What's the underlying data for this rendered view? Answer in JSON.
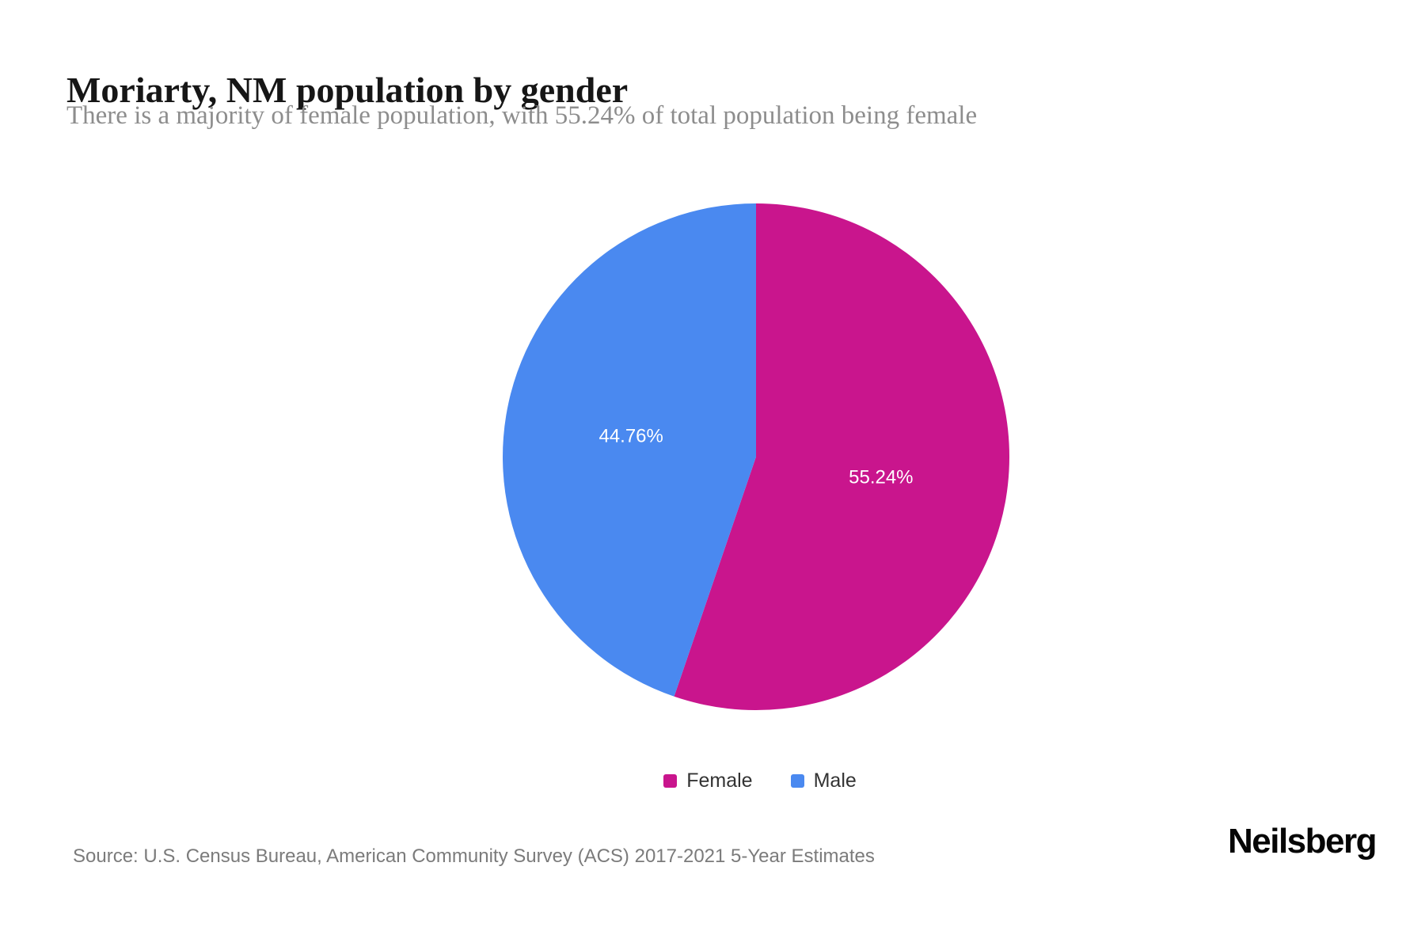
{
  "page": {
    "title": "Moriarty, NM population by gender",
    "subtitle": "There is a majority of female population, with 55.24% of total population being female",
    "source": "Source: U.S. Census Bureau, American Community Survey (ACS) 2017-2021 5-Year Estimates",
    "brand": "Neilsberg"
  },
  "chart_data": {
    "type": "pie",
    "title": "Moriarty, NM population by gender",
    "subtitle": "There is a majority of female population, with 55.24% of total population being female",
    "slices": [
      {
        "label": "Female",
        "value": 55.24,
        "display": "55.24%",
        "color": "#c9158d"
      },
      {
        "label": "Male",
        "value": 44.76,
        "display": "44.76%",
        "color": "#4a89f0"
      }
    ],
    "start_angle_deg": 0,
    "direction": "clockwise",
    "legend_position": "bottom",
    "label_color": "#ffffff"
  }
}
